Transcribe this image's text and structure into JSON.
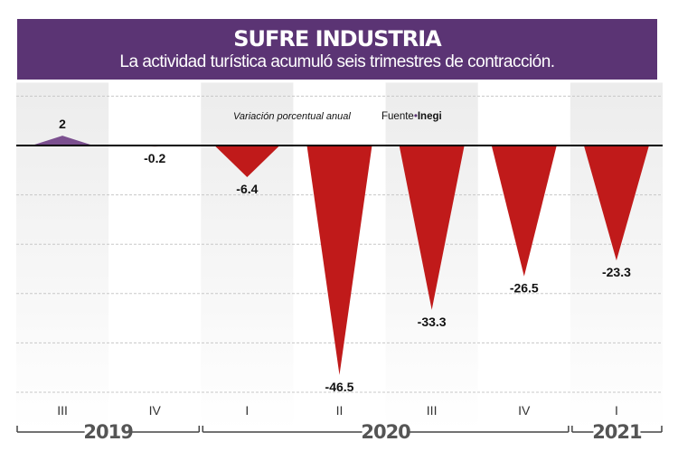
{
  "header": {
    "title": "SUFRE INDUSTRIA",
    "subtitle": "La actividad turística acumuló seis trimestres de contracción."
  },
  "chart_data": {
    "type": "bar",
    "title": "SUFRE INDUSTRIA",
    "subtitle": "La actividad turística acumuló seis trimestres de contracción.",
    "ylabel": "Variación porcentual anual",
    "source": "Fuente•Inegi",
    "source_prefix": "Fuente",
    "source_name": "Inegi",
    "categories": [
      "III",
      "IV",
      "I",
      "II",
      "III",
      "IV",
      "I"
    ],
    "years": [
      {
        "label": "2019",
        "span": 2
      },
      {
        "label": "2020",
        "span": 4
      },
      {
        "label": "2021",
        "span": 1
      }
    ],
    "values": [
      2,
      -0.2,
      -6.4,
      -46.5,
      -33.3,
      -26.5,
      -23.3
    ],
    "value_labels": [
      "2",
      "-0.2",
      "-6.4",
      "-46.5",
      "-33.3",
      "-26.5",
      "-23.3"
    ],
    "ylim": [
      -50,
      10
    ],
    "grid": true,
    "colors": {
      "positive": "#7b4f8f",
      "negative": "#c01a1a",
      "header": "#5b3474"
    }
  }
}
